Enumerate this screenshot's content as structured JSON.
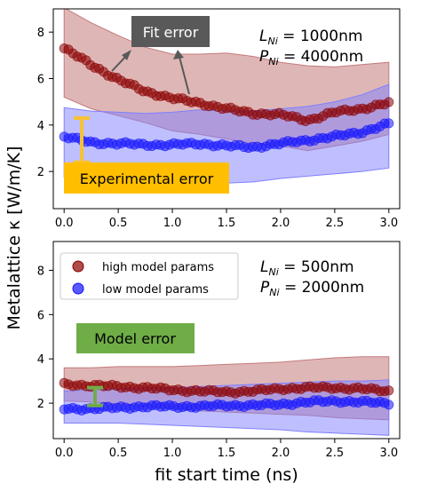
{
  "figure": {
    "ylabel": "Metalattice κ [W/m/K]",
    "xlabel": "fit start time (ns)",
    "colors": {
      "high": "#8b0000",
      "high_band": "#c47a7a",
      "low": "#1414ff",
      "low_band": "#7f7fff",
      "experimental_box": "#ffbf00",
      "experimental_bar": "#f7c233",
      "model_box": "#6fad47",
      "model_bar": "#70ad47",
      "fit_box": "#595959",
      "fit_text": "#ffffff"
    }
  },
  "chart_data": [
    {
      "type": "line",
      "panel": "top",
      "xlim": [
        -0.1,
        3.1
      ],
      "ylim": [
        0.4,
        9.0
      ],
      "xticks": [
        "0.0",
        "0.5",
        "1.0",
        "1.5",
        "2.0",
        "2.5",
        "3.0"
      ],
      "yticks": [
        "2",
        "4",
        "6",
        "8"
      ],
      "x": [
        0.0,
        0.25,
        0.5,
        0.75,
        1.0,
        1.25,
        1.5,
        1.75,
        2.0,
        2.25,
        2.5,
        2.75,
        3.0
      ],
      "series": [
        {
          "key": "high",
          "values": [
            7.3,
            6.6,
            5.95,
            5.45,
            5.15,
            4.95,
            4.7,
            4.5,
            4.45,
            4.2,
            4.55,
            4.7,
            4.95
          ],
          "band_upper": [
            9.05,
            8.4,
            7.85,
            7.35,
            7.05,
            7.05,
            7.1,
            6.95,
            6.7,
            6.55,
            6.5,
            6.6,
            6.7
          ],
          "band_lower": [
            5.2,
            4.7,
            4.4,
            4.1,
            3.75,
            3.6,
            3.4,
            3.2,
            3.1,
            2.9,
            3.1,
            3.3,
            3.6
          ]
        },
        {
          "key": "low",
          "values": [
            3.5,
            3.25,
            3.2,
            3.15,
            3.15,
            3.2,
            3.1,
            3.05,
            3.2,
            3.35,
            3.5,
            3.7,
            4.05
          ],
          "band_upper": [
            4.75,
            4.6,
            4.55,
            4.5,
            4.55,
            4.65,
            4.6,
            4.6,
            4.7,
            4.8,
            5.0,
            5.3,
            5.75
          ],
          "band_lower": [
            1.75,
            1.65,
            1.7,
            1.75,
            1.7,
            1.6,
            1.5,
            1.55,
            1.7,
            1.8,
            1.9,
            2.0,
            2.15
          ]
        }
      ],
      "annotations": {
        "params_line1": "L_Ni = 1000nm",
        "params_line2": "P_Ni = 4000nm",
        "fit_error_label": "Fit error",
        "experimental_error_label": "Experimental error",
        "error_bar": [
          2.4,
          4.3
        ]
      }
    },
    {
      "type": "line",
      "panel": "bottom",
      "xlim": [
        -0.1,
        3.1
      ],
      "ylim": [
        0.4,
        9.3
      ],
      "xticks": [
        "0.0",
        "0.5",
        "1.0",
        "1.5",
        "2.0",
        "2.5",
        "3.0"
      ],
      "yticks": [
        "2",
        "4",
        "6",
        "8"
      ],
      "x": [
        0.0,
        0.25,
        0.5,
        0.75,
        1.0,
        1.25,
        1.5,
        1.75,
        2.0,
        2.25,
        2.5,
        2.75,
        3.0
      ],
      "series": [
        {
          "key": "high",
          "values": [
            2.85,
            2.8,
            2.75,
            2.7,
            2.6,
            2.55,
            2.5,
            2.55,
            2.65,
            2.7,
            2.7,
            2.65,
            2.55
          ],
          "band_upper": [
            3.6,
            3.6,
            3.65,
            3.65,
            3.65,
            3.7,
            3.75,
            3.8,
            3.85,
            3.95,
            4.05,
            4.1,
            4.1
          ],
          "band_lower": [
            2.1,
            2.05,
            1.95,
            1.85,
            1.75,
            1.65,
            1.6,
            1.55,
            1.5,
            1.45,
            1.35,
            1.3,
            1.25
          ]
        },
        {
          "key": "low",
          "values": [
            1.75,
            1.75,
            1.8,
            1.85,
            1.85,
            1.85,
            1.9,
            1.9,
            1.95,
            2.05,
            2.1,
            2.05,
            2.0
          ],
          "band_upper": [
            2.55,
            2.6,
            2.65,
            2.7,
            2.7,
            2.75,
            2.8,
            2.85,
            2.9,
            2.95,
            3.0,
            3.0,
            3.05
          ],
          "band_lower": [
            1.1,
            1.1,
            1.1,
            1.05,
            1.0,
            0.95,
            0.9,
            0.85,
            0.8,
            0.7,
            0.65,
            0.6,
            0.55
          ]
        }
      ],
      "legend": {
        "position": "upper-left",
        "high": "high model params",
        "low": "low model params"
      },
      "annotations": {
        "params_line1": "L_Ni = 500nm",
        "params_line2": "P_Ni = 2000nm",
        "model_error_label": "Model error",
        "error_bar": [
          1.9,
          2.7
        ]
      }
    }
  ]
}
